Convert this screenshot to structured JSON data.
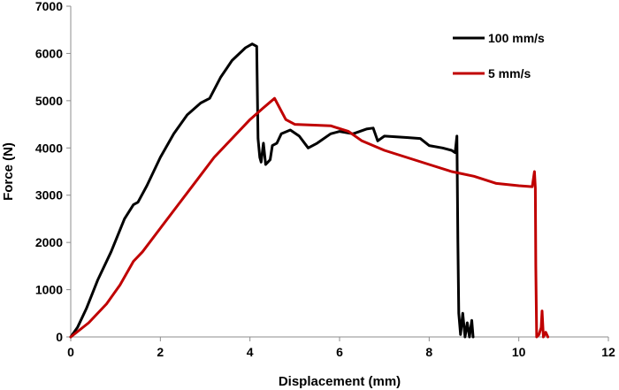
{
  "chart_data": {
    "type": "line",
    "title": "",
    "xlabel": "Displacement (mm)",
    "ylabel": "Force (N)",
    "xlim": [
      0,
      12
    ],
    "ylim": [
      0,
      7000
    ],
    "x_ticks": [
      0,
      2,
      4,
      6,
      8,
      10,
      12
    ],
    "y_ticks": [
      0,
      1000,
      2000,
      3000,
      4000,
      5000,
      6000,
      7000
    ],
    "grid": false,
    "legend_position": "top-right",
    "series": [
      {
        "name": "100 mm/s",
        "color": "#000000",
        "points": [
          [
            0,
            0
          ],
          [
            0.15,
            200
          ],
          [
            0.35,
            600
          ],
          [
            0.6,
            1200
          ],
          [
            0.9,
            1800
          ],
          [
            1.2,
            2500
          ],
          [
            1.4,
            2800
          ],
          [
            1.5,
            2850
          ],
          [
            1.7,
            3200
          ],
          [
            2.0,
            3800
          ],
          [
            2.3,
            4300
          ],
          [
            2.6,
            4700
          ],
          [
            2.9,
            4950
          ],
          [
            3.1,
            5050
          ],
          [
            3.35,
            5500
          ],
          [
            3.6,
            5850
          ],
          [
            3.9,
            6120
          ],
          [
            4.05,
            6200
          ],
          [
            4.15,
            6150
          ],
          [
            4.18,
            4200
          ],
          [
            4.22,
            3800
          ],
          [
            4.25,
            3700
          ],
          [
            4.3,
            4100
          ],
          [
            4.35,
            3650
          ],
          [
            4.45,
            3750
          ],
          [
            4.5,
            4050
          ],
          [
            4.6,
            4100
          ],
          [
            4.7,
            4300
          ],
          [
            4.9,
            4380
          ],
          [
            5.1,
            4250
          ],
          [
            5.3,
            4000
          ],
          [
            5.5,
            4100
          ],
          [
            5.8,
            4300
          ],
          [
            6.0,
            4350
          ],
          [
            6.3,
            4300
          ],
          [
            6.6,
            4400
          ],
          [
            6.75,
            4420
          ],
          [
            6.85,
            4150
          ],
          [
            7.0,
            4250
          ],
          [
            7.5,
            4220
          ],
          [
            7.8,
            4200
          ],
          [
            8.0,
            4050
          ],
          [
            8.3,
            4000
          ],
          [
            8.5,
            3950
          ],
          [
            8.58,
            3900
          ],
          [
            8.62,
            4250
          ],
          [
            8.64,
            2000
          ],
          [
            8.66,
            500
          ],
          [
            8.7,
            50
          ],
          [
            8.75,
            500
          ],
          [
            8.8,
            0
          ],
          [
            8.85,
            300
          ],
          [
            8.9,
            0
          ],
          [
            8.95,
            350
          ],
          [
            8.98,
            0
          ]
        ]
      },
      {
        "name": "5 mm/s",
        "color": "#c00000",
        "points": [
          [
            0,
            0
          ],
          [
            0.4,
            300
          ],
          [
            0.8,
            700
          ],
          [
            1.1,
            1100
          ],
          [
            1.4,
            1600
          ],
          [
            1.6,
            1800
          ],
          [
            2.0,
            2300
          ],
          [
            2.4,
            2800
          ],
          [
            2.8,
            3300
          ],
          [
            3.2,
            3800
          ],
          [
            3.6,
            4200
          ],
          [
            4.0,
            4600
          ],
          [
            4.3,
            4850
          ],
          [
            4.55,
            5050
          ],
          [
            4.8,
            4600
          ],
          [
            5.0,
            4500
          ],
          [
            5.5,
            4480
          ],
          [
            5.8,
            4470
          ],
          [
            6.2,
            4350
          ],
          [
            6.5,
            4150
          ],
          [
            7.0,
            3950
          ],
          [
            7.5,
            3800
          ],
          [
            8.0,
            3650
          ],
          [
            8.5,
            3500
          ],
          [
            9.0,
            3400
          ],
          [
            9.5,
            3250
          ],
          [
            10.0,
            3200
          ],
          [
            10.3,
            3180
          ],
          [
            10.35,
            3500
          ],
          [
            10.37,
            3150
          ],
          [
            10.38,
            1500
          ],
          [
            10.4,
            0
          ],
          [
            10.45,
            50
          ],
          [
            10.5,
            200
          ],
          [
            10.52,
            550
          ],
          [
            10.55,
            0
          ],
          [
            10.6,
            100
          ],
          [
            10.65,
            0
          ]
        ]
      }
    ]
  }
}
